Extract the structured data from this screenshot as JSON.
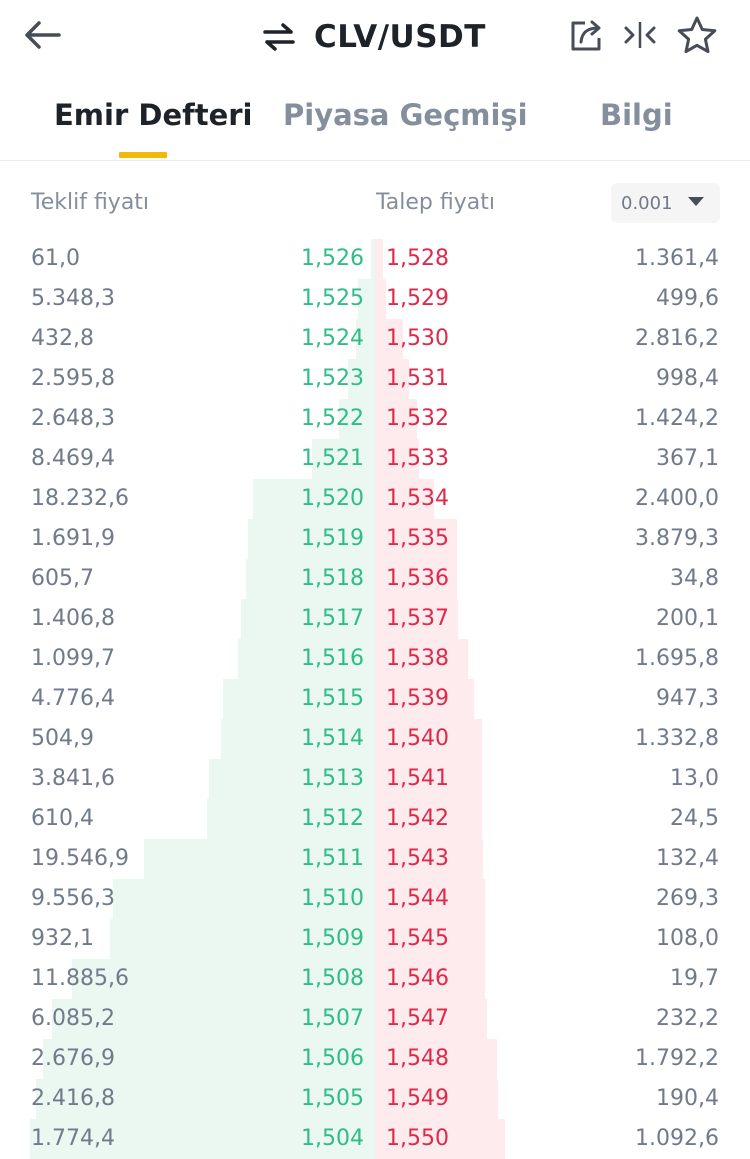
{
  "header": {
    "title": "CLV/USDT",
    "icons": [
      "back-arrow-icon",
      "swap-icon",
      "share-icon",
      "compare-icon",
      "star-icon"
    ]
  },
  "tabs": [
    {
      "label": "Emir Defteri",
      "active": true
    },
    {
      "label": "Piyasa Geçmişi",
      "active": false
    },
    {
      "label": "Bilgi",
      "active": false
    }
  ],
  "columns": {
    "bid_label": "Teklif fiyatı",
    "ask_label": "Talep fiyatı",
    "precision": "0.001"
  },
  "colors": {
    "accent": "#f0b90b",
    "bid": "#2ebd85",
    "ask": "#e0294a",
    "bid_bar": "#ebf8f1",
    "ask_bar": "#fdebed"
  },
  "orderbook": [
    {
      "bid_qty": "61,0",
      "bid_price": "1,526",
      "ask_price": "1,528",
      "ask_qty": "1.361,4"
    },
    {
      "bid_qty": "5.348,3",
      "bid_price": "1,525",
      "ask_price": "1,529",
      "ask_qty": "499,6"
    },
    {
      "bid_qty": "432,8",
      "bid_price": "1,524",
      "ask_price": "1,530",
      "ask_qty": "2.816,2"
    },
    {
      "bid_qty": "2.595,8",
      "bid_price": "1,523",
      "ask_price": "1,531",
      "ask_qty": "998,4"
    },
    {
      "bid_qty": "2.648,3",
      "bid_price": "1,522",
      "ask_price": "1,532",
      "ask_qty": "1.424,2"
    },
    {
      "bid_qty": "8.469,4",
      "bid_price": "1,521",
      "ask_price": "1,533",
      "ask_qty": "367,1"
    },
    {
      "bid_qty": "18.232,6",
      "bid_price": "1,520",
      "ask_price": "1,534",
      "ask_qty": "2.400,0"
    },
    {
      "bid_qty": "1.691,9",
      "bid_price": "1,519",
      "ask_price": "1,535",
      "ask_qty": "3.879,3"
    },
    {
      "bid_qty": "605,7",
      "bid_price": "1,518",
      "ask_price": "1,536",
      "ask_qty": "34,8"
    },
    {
      "bid_qty": "1.406,8",
      "bid_price": "1,517",
      "ask_price": "1,537",
      "ask_qty": "200,1"
    },
    {
      "bid_qty": "1.099,7",
      "bid_price": "1,516",
      "ask_price": "1,538",
      "ask_qty": "1.695,8"
    },
    {
      "bid_qty": "4.776,4",
      "bid_price": "1,515",
      "ask_price": "1,539",
      "ask_qty": "947,3"
    },
    {
      "bid_qty": "504,9",
      "bid_price": "1,514",
      "ask_price": "1,540",
      "ask_qty": "1.332,8"
    },
    {
      "bid_qty": "3.841,6",
      "bid_price": "1,513",
      "ask_price": "1,541",
      "ask_qty": "13,0"
    },
    {
      "bid_qty": "610,4",
      "bid_price": "1,512",
      "ask_price": "1,542",
      "ask_qty": "24,5"
    },
    {
      "bid_qty": "19.546,9",
      "bid_price": "1,511",
      "ask_price": "1,543",
      "ask_qty": "132,4"
    },
    {
      "bid_qty": "9.556,3",
      "bid_price": "1,510",
      "ask_price": "1,544",
      "ask_qty": "269,3"
    },
    {
      "bid_qty": "932,1",
      "bid_price": "1,509",
      "ask_price": "1,545",
      "ask_qty": "108,0"
    },
    {
      "bid_qty": "11.885,6",
      "bid_price": "1,508",
      "ask_price": "1,546",
      "ask_qty": "19,7"
    },
    {
      "bid_qty": "6.085,2",
      "bid_price": "1,507",
      "ask_price": "1,547",
      "ask_qty": "232,2"
    },
    {
      "bid_qty": "2.676,9",
      "bid_price": "1,506",
      "ask_price": "1,548",
      "ask_qty": "1.792,2"
    },
    {
      "bid_qty": "2.416,8",
      "bid_price": "1,505",
      "ask_price": "1,549",
      "ask_qty": "190,4"
    },
    {
      "bid_qty": "1.774,4",
      "bid_price": "1,504",
      "ask_price": "1,550",
      "ask_qty": "1.092,6"
    }
  ]
}
